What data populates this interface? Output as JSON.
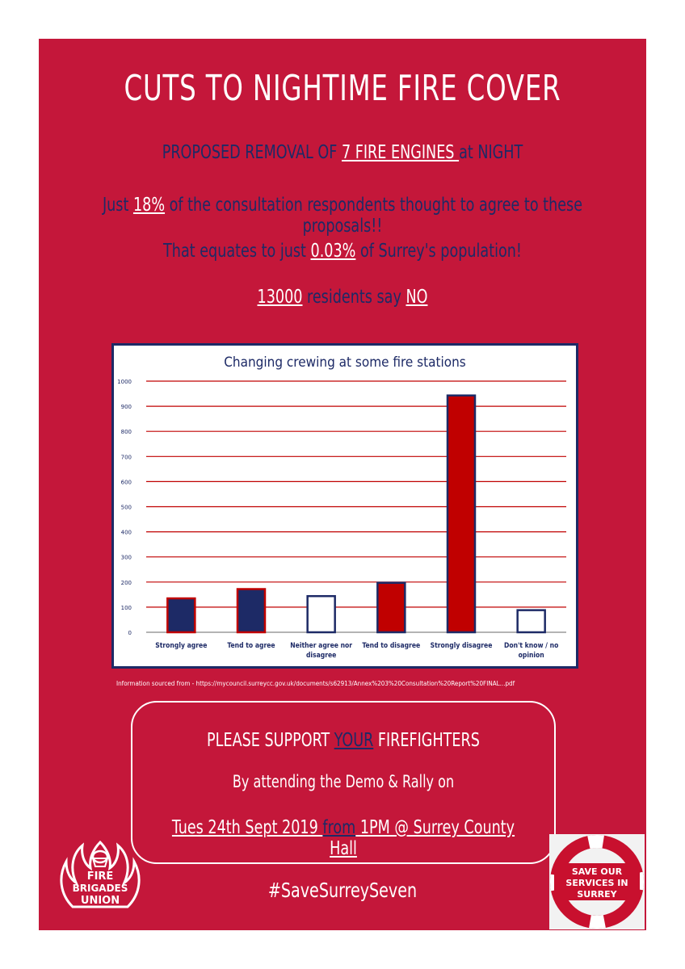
{
  "poster": {
    "title": "CUTS TO NIGHTIME FIRE COVER",
    "line1": {
      "pre": "PROPOSED REMOVAL OF ",
      "highlight": "7 FIRE ENGINES ",
      "post": "at NIGHT"
    },
    "line2": {
      "pre": "Just ",
      "highlight": "18%",
      "post": " of the consultation respondents thought to agree to these proposals!!"
    },
    "line3": {
      "pre": "That equates to just ",
      "highlight": "0.03%",
      "post": " of Surrey's population!"
    },
    "line4": {
      "pre": "",
      "highlight": "13000",
      "mid": " residents say ",
      "highlight2": "NO"
    },
    "source": "Information sourced from - https://mycouncil.surreycc.gov.uk/documents/s62913/Annex%203%20Consultation%20Report%20FINAL...pdf",
    "support": {
      "line1_pre": "PLEASE SUPPORT ",
      "line1_highlight": "YOUR",
      "line1_post": " FIREFIGHTERS",
      "line2": "By attending the Demo & Rally on",
      "line3_a": "Tues 24th Sept 2019 ",
      "line3_b": "from",
      "line3_c": " 1PM @ Surrey County Hall"
    },
    "hashtag": "#SaveSurreySeven",
    "fbu_logo": {
      "line1": "FIRE",
      "line2": "BRIGADES",
      "line3": "UNION"
    },
    "sos_logo": {
      "line1": "SAVE OUR",
      "line2": "SERVICES IN",
      "line3": "SURREY"
    }
  },
  "colors": {
    "background": "#c4173a",
    "navy": "#1d2a66",
    "bar_red": "#c00000",
    "grid_red": "#c00000"
  },
  "chart_data": {
    "type": "bar",
    "title": "Changing crewing at some fire stations",
    "categories": [
      "Strongly agree",
      "Tend to agree",
      "Neither agree nor disagree",
      "Tend to disagree",
      "Strongly disagree",
      "Don't know / no opinion"
    ],
    "values": [
      135,
      172,
      144,
      197,
      943,
      88
    ],
    "bar_fills": [
      "#1d2a66",
      "#1d2a66",
      "#ffffff",
      "#c00000",
      "#c00000",
      "#ffffff"
    ],
    "bar_outlines": [
      "#c00000",
      "#c00000",
      "#1d2a66",
      "#1d2a66",
      "#1d2a66",
      "#1d2a66"
    ],
    "ylim": [
      0,
      1000
    ],
    "yticks": [
      0,
      100,
      200,
      300,
      400,
      500,
      600,
      700,
      800,
      900,
      1000
    ],
    "xlabel": "",
    "ylabel": "",
    "grid": true,
    "legend": "none"
  }
}
